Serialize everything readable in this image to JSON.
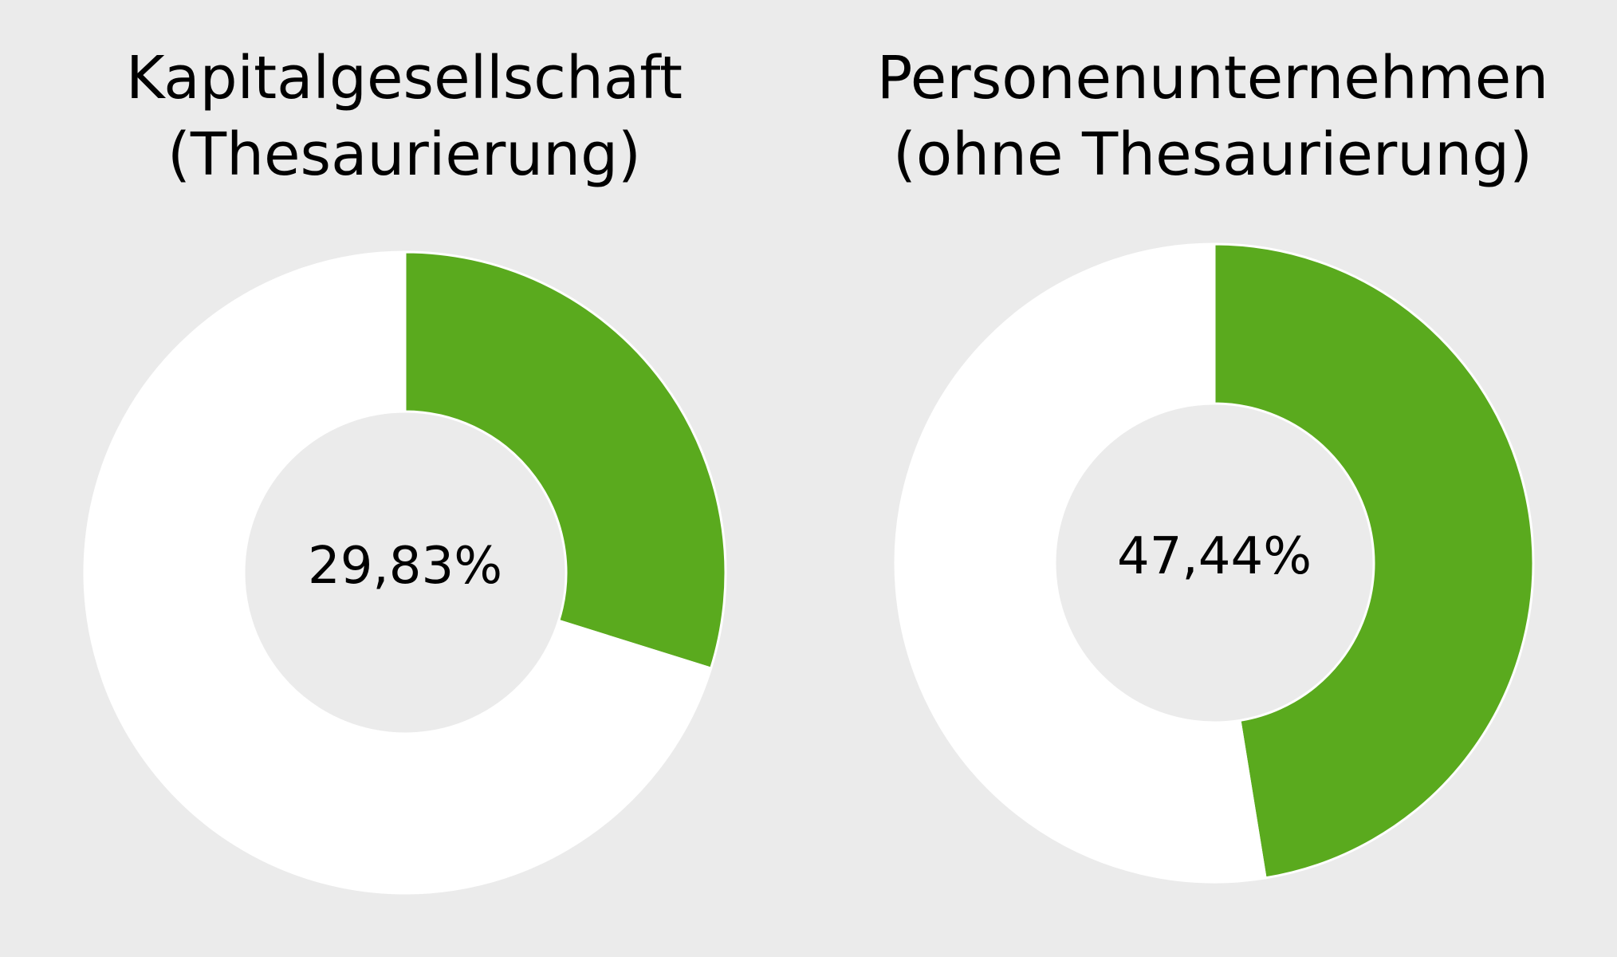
{
  "colors": {
    "background": "#ebebeb",
    "share": "#5aaa1e",
    "remainder": "#ffffff",
    "text": "#000000"
  },
  "chart_data": [
    {
      "type": "pie",
      "title_lines": [
        "Kapitalgesellschaft",
        "(Thesaurierung)"
      ],
      "center_label": "29,83%",
      "values": [
        29.83,
        70.17
      ]
    },
    {
      "type": "pie",
      "title_lines": [
        "Personenunternehmen",
        "(ohne Thesaurierung)"
      ],
      "center_label": "47,44%",
      "values": [
        47.44,
        52.56
      ]
    }
  ]
}
